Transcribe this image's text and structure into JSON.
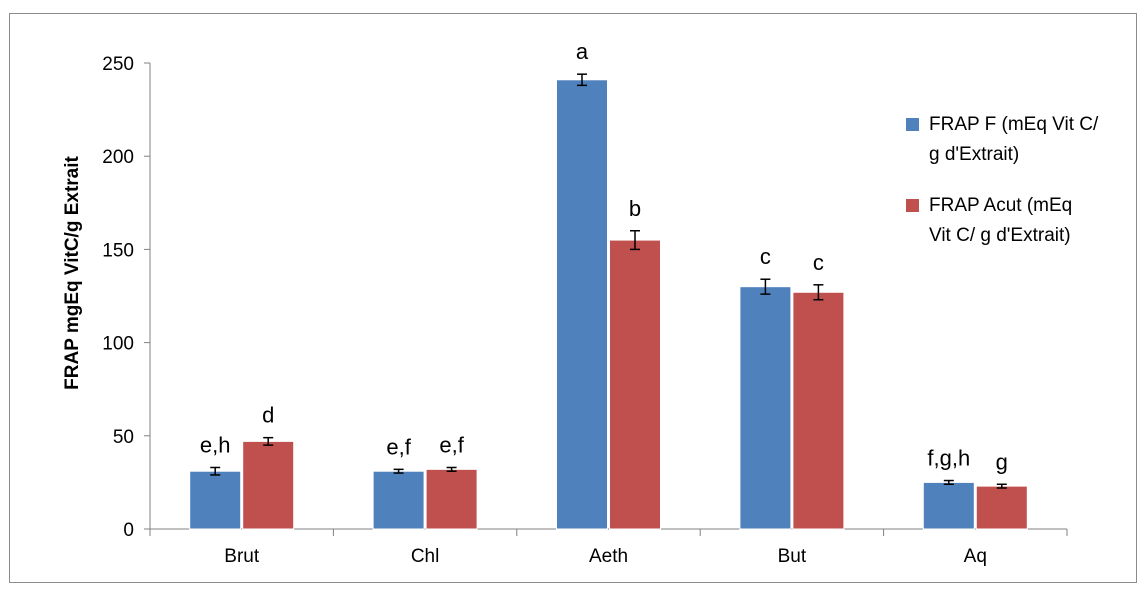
{
  "chart_data": {
    "type": "bar",
    "title": "",
    "xlabel": "",
    "ylabel": "FRAP  mgEq VitC/g Extrait",
    "ylim": [
      0,
      250
    ],
    "yticks": [
      0,
      50,
      100,
      150,
      200,
      250
    ],
    "grid": false,
    "legend_position": "right",
    "categories": [
      "Brut",
      "Chl",
      "Aeth",
      "But",
      "Aq"
    ],
    "series": [
      {
        "name": "FRAP F  (mEq Vit C/ g d'Extrait)",
        "color": "#4f81bd",
        "values": [
          31,
          31,
          241,
          130,
          25
        ],
        "errors": [
          2,
          1,
          3,
          4,
          1
        ],
        "labels": [
          "e,h",
          "e,f",
          "a",
          "c",
          "f,g,h"
        ]
      },
      {
        "name": "FRAP Acut  (mEq Vit C/ g d'Extrait)",
        "color": "#c0504d",
        "values": [
          47,
          32,
          155,
          127,
          23
        ],
        "errors": [
          2,
          1,
          5,
          4,
          1
        ],
        "labels": [
          "d",
          "e,f",
          "b",
          "c",
          "g"
        ]
      }
    ],
    "legend_lines": [
      [
        "FRAP F  (mEq Vit C/",
        "g d'Extrait)"
      ],
      [
        "FRAP Acut  (mEq",
        "Vit C/ g d'Extrait)"
      ]
    ]
  }
}
